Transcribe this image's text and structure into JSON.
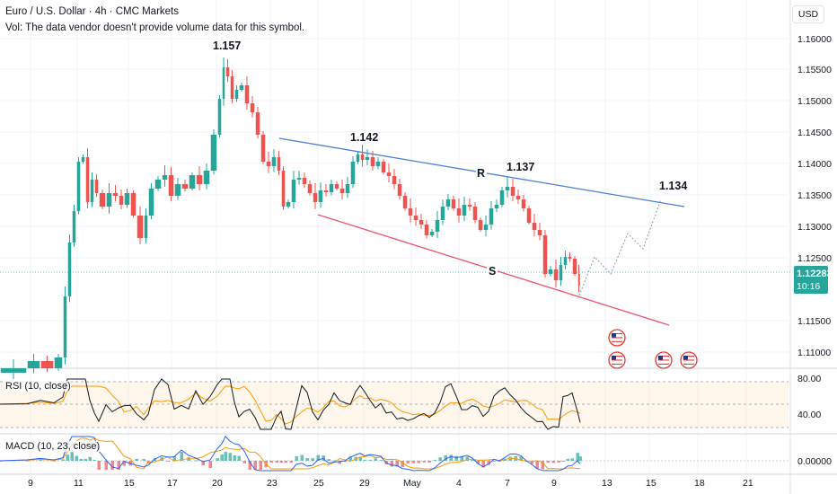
{
  "header": {
    "title": "Euro / U.S. Dollar · 4h · CMC Markets",
    "volume_note": "Vol: The data vendor doesn't provide volume data for this symbol.",
    "currency_button": "USD"
  },
  "price_axis": {
    "ticks": [
      "1.16000",
      "1.15500",
      "1.15000",
      "1.14500",
      "1.14000",
      "1.13500",
      "1.13000",
      "1.12500",
      "1.11500",
      "1.11000"
    ]
  },
  "current_price": {
    "value": "1.12283",
    "countdown": "10:16",
    "color": "#26a69a"
  },
  "time_axis": {
    "labels": [
      "9",
      "11",
      "15",
      "17",
      "20",
      "23",
      "25",
      "29",
      "May",
      "4",
      "7",
      "9",
      "13",
      "15",
      "18",
      "21"
    ]
  },
  "annotations": {
    "callouts": [
      "1.157",
      "1.142",
      "1.137",
      "1.134"
    ],
    "resistance_letter": "R",
    "support_letter": "S",
    "resistance_color": "#4a7fdc",
    "support_color": "#f05369"
  },
  "rsi_pane": {
    "title": "RSI (10, close)",
    "ticks": [
      "80.00",
      "40.00"
    ],
    "line_color": "#131722",
    "ma_color": "#ff9800"
  },
  "macd_pane": {
    "title": "MACD (10, 23, close)",
    "ticks": [
      "0.00000"
    ],
    "macd_color": "#2962ff",
    "signal_color": "#ff9800"
  },
  "colors": {
    "up": "#26a69a",
    "down": "#ef5350",
    "grid": "#f0f3fa",
    "text": "#131722"
  },
  "event_icons": [
    "us-flag-icon",
    "us-flag-icon",
    "us-flag-icon",
    "us-flag-icon"
  ]
}
